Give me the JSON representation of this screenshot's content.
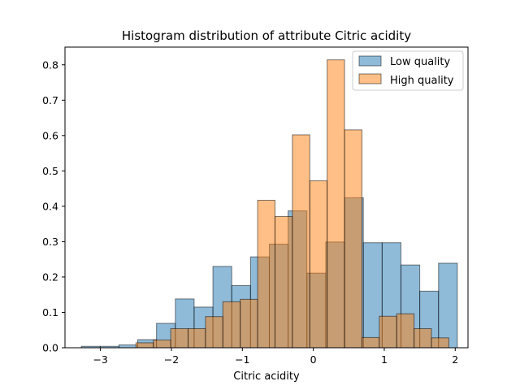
{
  "chart_data": {
    "type": "histogram",
    "title": "Histogram distribution of attribute Citric acidity",
    "xlabel": "Citric acidity",
    "ylabel": "",
    "xlim": [
      -3.5,
      2.18
    ],
    "ylim": [
      0,
      0.85
    ],
    "xticks": [
      -3,
      -2,
      -1,
      0,
      1,
      2
    ],
    "yticks": [
      0.0,
      0.1,
      0.2,
      0.3,
      0.4,
      0.5,
      0.6,
      0.7,
      0.8
    ],
    "grid": false,
    "legend_position": "top-right",
    "series": [
      {
        "name": "Low quality",
        "color": "#1f77b4",
        "bin_edges": [
          -3.27,
          -3.005,
          -2.74,
          -2.475,
          -2.21,
          -1.945,
          -1.68,
          -1.415,
          -1.15,
          -0.885,
          -0.62,
          -0.355,
          -0.09,
          0.175,
          0.44,
          0.705,
          0.97,
          1.235,
          1.5,
          1.765,
          2.03
        ],
        "values": [
          0.004,
          0.004,
          0.008,
          0.023,
          0.069,
          0.138,
          0.115,
          0.23,
          0.176,
          0.257,
          0.293,
          0.387,
          0.211,
          0.299,
          0.424,
          0.297,
          0.297,
          0.234,
          0.16,
          0.239
        ]
      },
      {
        "name": "High quality",
        "color": "#ff7f0e",
        "bin_edges": [
          -2.5,
          -2.255,
          -2.01,
          -1.765,
          -1.52,
          -1.275,
          -1.03,
          -0.785,
          -0.54,
          -0.295,
          -0.05,
          0.195,
          0.44,
          0.685,
          0.93,
          1.175,
          1.42,
          1.665,
          1.91
        ],
        "values": [
          0.014,
          0.022,
          0.054,
          0.054,
          0.088,
          0.13,
          0.137,
          0.417,
          0.371,
          0.602,
          0.472,
          0.814,
          0.616,
          0.029,
          0.089,
          0.096,
          0.054,
          0.028
        ]
      }
    ]
  },
  "legend": {
    "items": [
      {
        "label": "Low quality",
        "color": "#1f77b4"
      },
      {
        "label": "High quality",
        "color": "#ff7f0e"
      }
    ]
  }
}
